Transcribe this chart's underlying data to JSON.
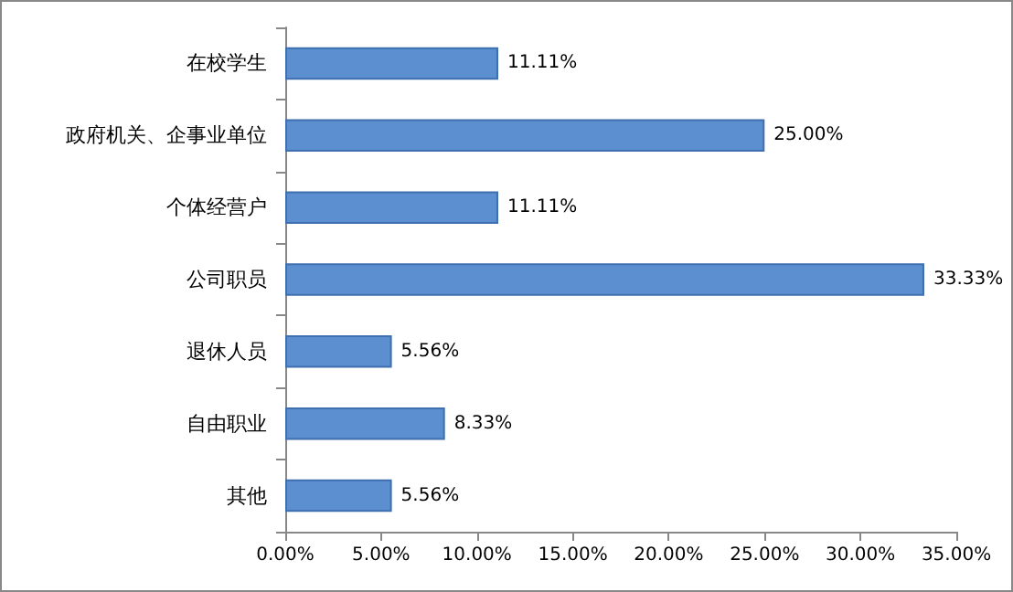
{
  "chart_data": {
    "type": "bar",
    "orientation": "horizontal",
    "categories": [
      "在校学生",
      "政府机关、企事业单位",
      "个体经营户",
      "公司职员",
      "退休人员",
      "自由职业",
      "其他"
    ],
    "values": [
      11.11,
      25.0,
      11.11,
      33.33,
      5.56,
      8.33,
      5.56
    ],
    "value_labels": [
      "11.11%",
      "25.00%",
      "11.11%",
      "33.33%",
      "5.56%",
      "8.33%",
      "5.56%"
    ],
    "color": "#5b8fd0",
    "xlim": [
      0,
      35
    ],
    "xticks": [
      {
        "value": 0,
        "label": "0.00%"
      },
      {
        "value": 5,
        "label": "5.00%"
      },
      {
        "value": 10,
        "label": "10.00%"
      },
      {
        "value": 15,
        "label": "15.00%"
      },
      {
        "value": 20,
        "label": "20.00%"
      },
      {
        "value": 25,
        "label": "25.00%"
      },
      {
        "value": 30,
        "label": "30.00%"
      },
      {
        "value": 35,
        "label": "35.00%"
      }
    ],
    "grid": false
  }
}
